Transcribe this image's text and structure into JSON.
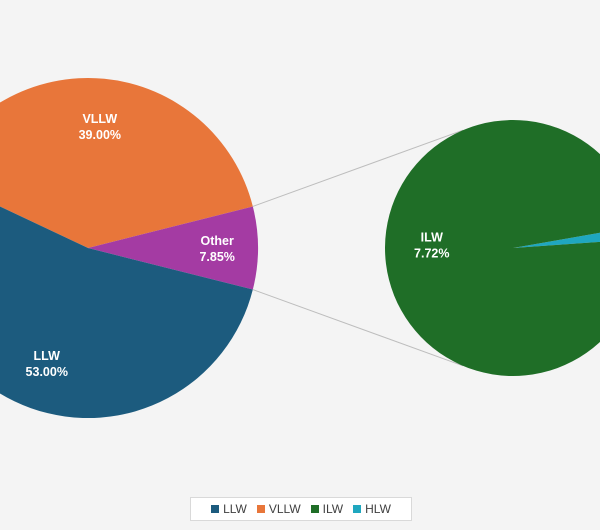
{
  "chart_data": {
    "type": "pie",
    "title": "",
    "main_pie": {
      "slices": [
        {
          "label": "VLLW",
          "value": 39.0,
          "value_label": "39.00%",
          "color": "#e8763a"
        },
        {
          "label": "Other",
          "value": 7.85,
          "value_label": "7.85%",
          "color": "#a43ba3"
        },
        {
          "label": "LLW",
          "value": 53.0,
          "value_label": "53.00%",
          "color": "#1c5b7e"
        }
      ]
    },
    "breakout_pie": {
      "of": "Other",
      "slices": [
        {
          "label": "ILW",
          "value": 7.72,
          "value_label": "7.72%",
          "color": "#1f6e27"
        },
        {
          "label": "HLW",
          "value": 0.13,
          "value_label": "",
          "color": "#1fa7bf"
        }
      ]
    },
    "legend": {
      "position": "bottom",
      "items": [
        {
          "label": "LLW",
          "color": "#1c5b7e"
        },
        {
          "label": "VLLW",
          "color": "#e8763a"
        },
        {
          "label": "ILW",
          "color": "#1f6e27"
        },
        {
          "label": "HLW",
          "color": "#1fa7bf"
        }
      ]
    }
  }
}
